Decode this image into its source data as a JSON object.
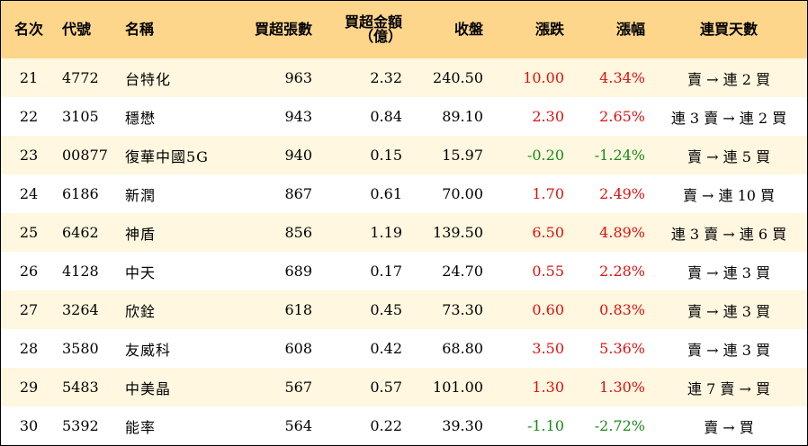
{
  "colors": {
    "header_bg": "#fdd68c",
    "row_alt_bg": "#fff7df",
    "up": "#e01010",
    "down": "#1a8a1a"
  },
  "headers": {
    "rank": "名次",
    "code": "代號",
    "name": "名稱",
    "net_buy_lots": "買超張數",
    "net_buy_amount": "買超金額",
    "net_buy_amount_unit": "（億）",
    "close": "收盤",
    "change": "漲跌",
    "change_pct": "漲幅",
    "streak": "連買天數"
  },
  "rows": [
    {
      "rank": "21",
      "code": "4772",
      "name": "台特化",
      "lots": "963",
      "amount": "2.32",
      "close": "240.50",
      "change": "10.00",
      "pct": "4.34%",
      "streak": "賣 → 連 2 買",
      "dir": "up"
    },
    {
      "rank": "22",
      "code": "3105",
      "name": "穩懋",
      "lots": "943",
      "amount": "0.84",
      "close": "89.10",
      "change": "2.30",
      "pct": "2.65%",
      "streak": "連 3 賣 → 連 2 買",
      "dir": "up"
    },
    {
      "rank": "23",
      "code": "00877",
      "name": "復華中國5G",
      "lots": "940",
      "amount": "0.15",
      "close": "15.97",
      "change": "-0.20",
      "pct": "-1.24%",
      "streak": "賣 → 連 5 買",
      "dir": "down"
    },
    {
      "rank": "24",
      "code": "6186",
      "name": "新潤",
      "lots": "867",
      "amount": "0.61",
      "close": "70.00",
      "change": "1.70",
      "pct": "2.49%",
      "streak": "賣 → 連 10 買",
      "dir": "up"
    },
    {
      "rank": "25",
      "code": "6462",
      "name": "神盾",
      "lots": "856",
      "amount": "1.19",
      "close": "139.50",
      "change": "6.50",
      "pct": "4.89%",
      "streak": "連 3 賣 → 連 6 買",
      "dir": "up"
    },
    {
      "rank": "26",
      "code": "4128",
      "name": "中天",
      "lots": "689",
      "amount": "0.17",
      "close": "24.70",
      "change": "0.55",
      "pct": "2.28%",
      "streak": "賣 → 連 3 買",
      "dir": "up"
    },
    {
      "rank": "27",
      "code": "3264",
      "name": "欣銓",
      "lots": "618",
      "amount": "0.45",
      "close": "73.30",
      "change": "0.60",
      "pct": "0.83%",
      "streak": "賣 → 連 3 買",
      "dir": "up"
    },
    {
      "rank": "28",
      "code": "3580",
      "name": "友威科",
      "lots": "608",
      "amount": "0.42",
      "close": "68.80",
      "change": "3.50",
      "pct": "5.36%",
      "streak": "賣 → 連 3 買",
      "dir": "up"
    },
    {
      "rank": "29",
      "code": "5483",
      "name": "中美晶",
      "lots": "567",
      "amount": "0.57",
      "close": "101.00",
      "change": "1.30",
      "pct": "1.30%",
      "streak": "連 7 賣 → 買",
      "dir": "up"
    },
    {
      "rank": "30",
      "code": "5392",
      "name": "能率",
      "lots": "564",
      "amount": "0.22",
      "close": "39.30",
      "change": "-1.10",
      "pct": "-2.72%",
      "streak": "賣 → 買",
      "dir": "down"
    }
  ]
}
